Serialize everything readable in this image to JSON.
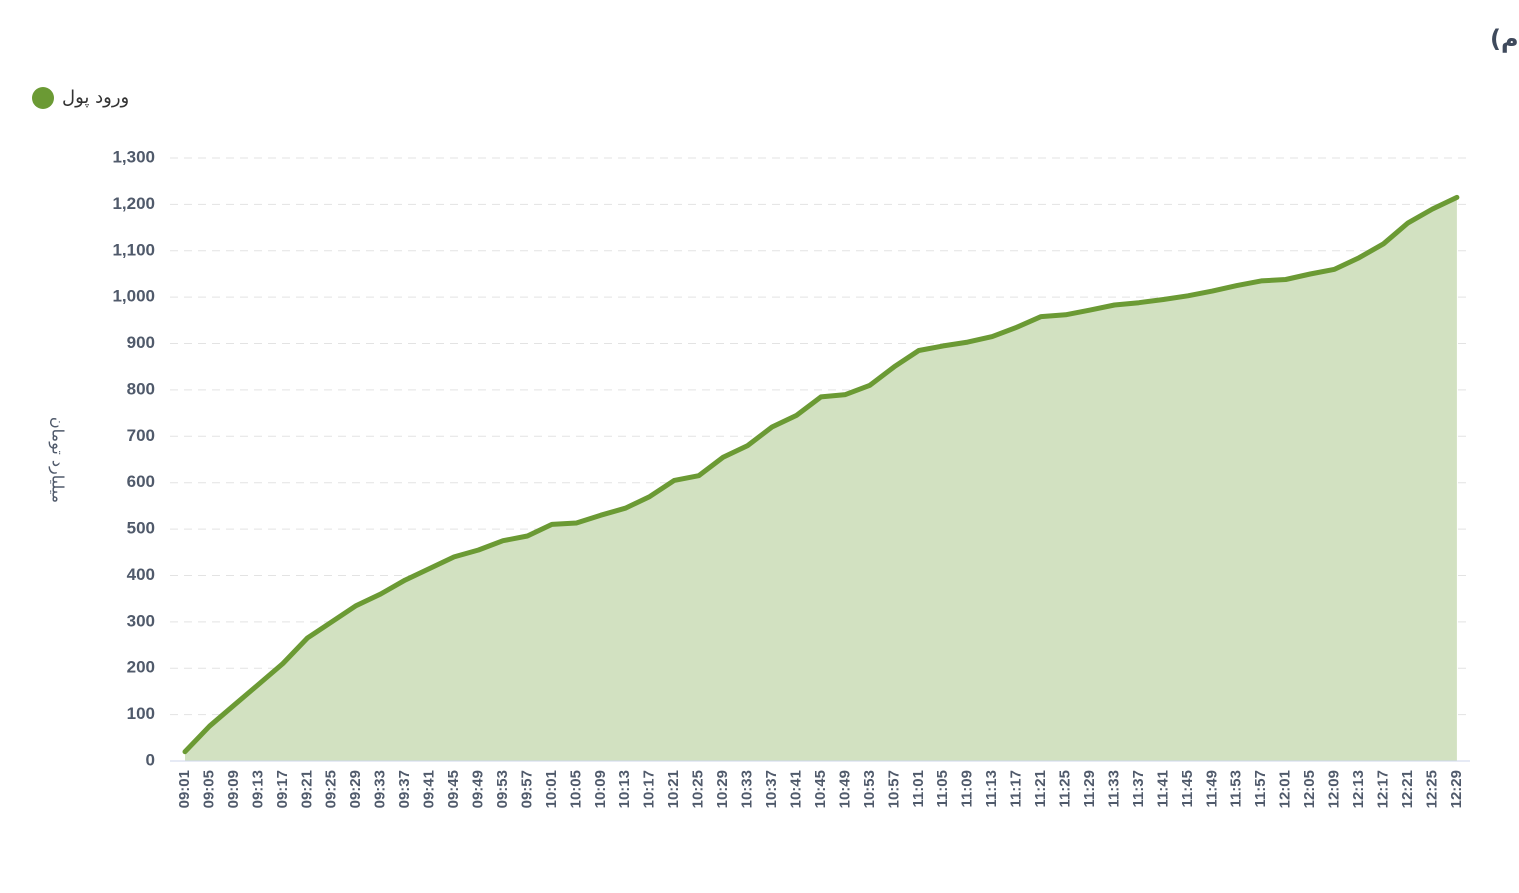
{
  "chart_data": {
    "type": "area",
    "title": "روند تغییر مالکیت حقیقی (سهام و حق تقدم)",
    "y_label": "میلیارد تومان",
    "legend_position": "top-left",
    "grid": true,
    "categories": [
      "09:01",
      "09:05",
      "09:09",
      "09:13",
      "09:17",
      "09:21",
      "09:25",
      "09:29",
      "09:33",
      "09:37",
      "09:41",
      "09:45",
      "09:49",
      "09:53",
      "09:57",
      "10:01",
      "10:05",
      "10:09",
      "10:13",
      "10:17",
      "10:21",
      "10:25",
      "10:29",
      "10:33",
      "10:37",
      "10:41",
      "10:45",
      "10:49",
      "10:53",
      "10:57",
      "11:01",
      "11:05",
      "11:09",
      "11:13",
      "11:17",
      "11:21",
      "11:25",
      "11:29",
      "11:33",
      "11:37",
      "11:41",
      "11:45",
      "11:49",
      "11:53",
      "11:57",
      "12:01",
      "12:05",
      "12:09",
      "12:13",
      "12:17",
      "12:21",
      "12:25",
      "12:29"
    ],
    "series": [
      {
        "name": "ورود پول",
        "color": "#6b9a34",
        "fill": "#d2e1c1",
        "values": [
          20,
          75,
          120,
          165,
          210,
          265,
          300,
          335,
          360,
          390,
          415,
          440,
          455,
          475,
          485,
          510,
          513,
          530,
          545,
          570,
          605,
          615,
          655,
          680,
          720,
          745,
          785,
          790,
          810,
          850,
          885,
          895,
          903,
          915,
          935,
          958,
          962,
          972,
          983,
          988,
          995,
          1003,
          1013,
          1025,
          1035,
          1038,
          1050,
          1060,
          1085,
          1115,
          1160,
          1190,
          1215
        ]
      }
    ],
    "ylim": [
      0,
      1300
    ],
    "yticks": [
      0,
      100,
      200,
      300,
      400,
      500,
      600,
      700,
      800,
      900,
      {
        "value": 1000,
        "label": "1,000"
      },
      {
        "value": 1100,
        "label": "1,100"
      },
      {
        "value": 1200,
        "label": "1,200"
      },
      {
        "value": 1300,
        "label": "1,300"
      }
    ]
  }
}
